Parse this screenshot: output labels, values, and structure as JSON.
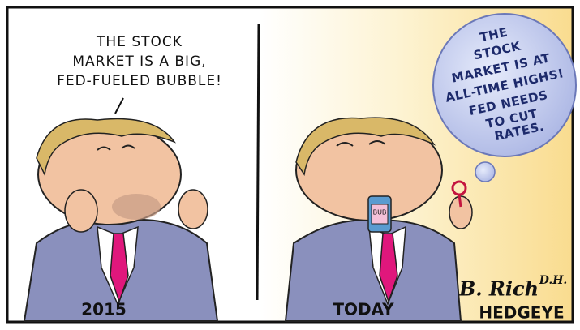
{
  "panels": [
    {
      "speech": [
        "THE STOCK",
        "MARKET IS A BIG,",
        "FED-FUELED BUBBLE!"
      ],
      "caption": "2015"
    },
    {
      "bubble": [
        "THE",
        "STOCK",
        "MARKET IS AT",
        "ALL-TIME HIGHS!",
        "FED NEEDS",
        "TO CUT",
        "RATES."
      ],
      "bottle_label": "BUB",
      "caption": "TODAY"
    }
  ],
  "signature": {
    "artist": "B. Rich",
    "initials": "D.H.",
    "brand": "HEDGEYE"
  }
}
